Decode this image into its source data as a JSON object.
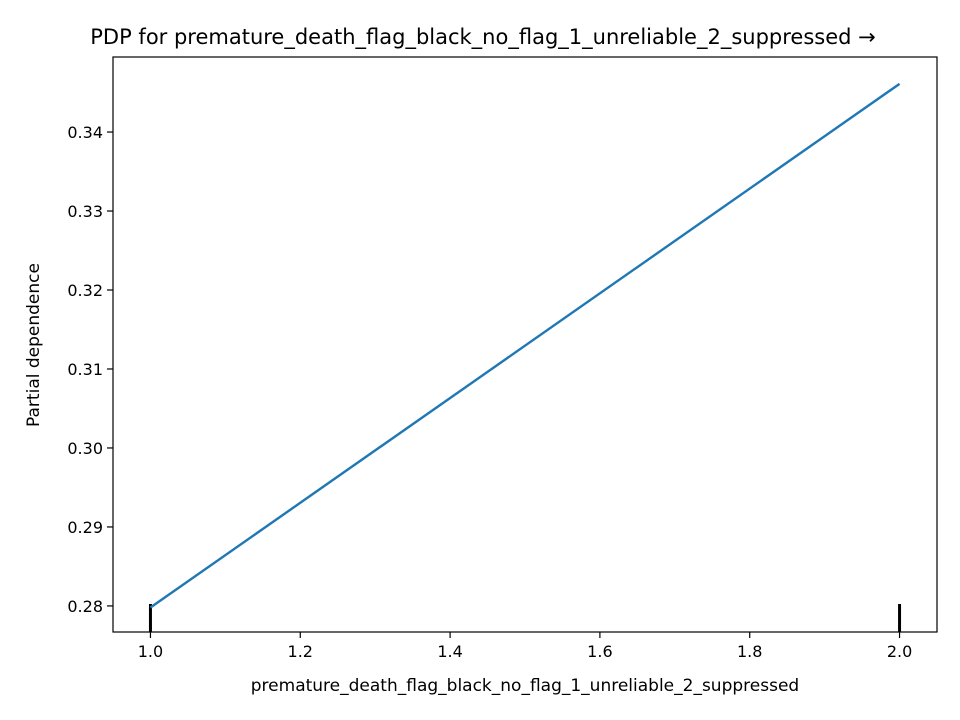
{
  "chart_data": {
    "type": "line",
    "title": "PDP for premature_death_flag_black_no_flag_1_unreliable_2_suppressed →",
    "xlabel": "premature_death_flag_black_no_flag_1_unreliable_2_suppressed",
    "ylabel": "Partial dependence",
    "xlim": [
      0.95,
      2.05
    ],
    "ylim": [
      0.2767,
      0.3495
    ],
    "xticks": [
      1.0,
      1.2,
      1.4,
      1.6,
      1.8,
      2.0
    ],
    "xtick_labels": [
      "1.0",
      "1.2",
      "1.4",
      "1.6",
      "1.8",
      "2.0"
    ],
    "yticks": [
      0.28,
      0.29,
      0.3,
      0.31,
      0.32,
      0.33,
      0.34
    ],
    "ytick_labels": [
      "0.28",
      "0.29",
      "0.30",
      "0.31",
      "0.32",
      "0.33",
      "0.34"
    ],
    "grid": false,
    "series": [
      {
        "x": [
          1.0,
          2.0
        ],
        "y": [
          0.2798,
          0.3461
        ],
        "color": "#1f77b4"
      }
    ],
    "rug": {
      "x": [
        1.0,
        2.0
      ],
      "color": "#000000"
    }
  }
}
